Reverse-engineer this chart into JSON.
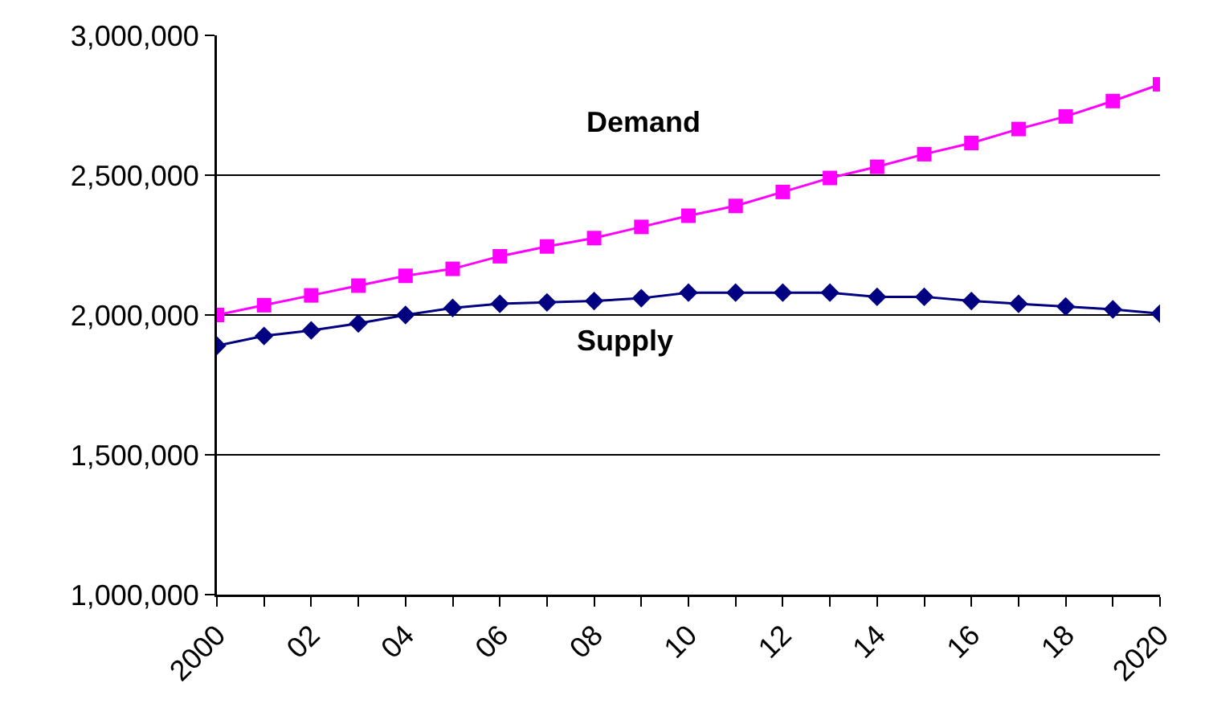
{
  "chart_data": {
    "type": "line",
    "x": [
      2000,
      2001,
      2002,
      2003,
      2004,
      2005,
      2006,
      2007,
      2008,
      2009,
      2010,
      2011,
      2012,
      2013,
      2014,
      2015,
      2016,
      2017,
      2018,
      2019,
      2020
    ],
    "series": [
      {
        "name": "Demand",
        "color": "#ff00ff",
        "marker": "square",
        "values": [
          2000000,
          2035000,
          2070000,
          2105000,
          2140000,
          2165000,
          2210000,
          2245000,
          2275000,
          2315000,
          2355000,
          2390000,
          2440000,
          2490000,
          2530000,
          2575000,
          2615000,
          2665000,
          2710000,
          2765000,
          2825000
        ]
      },
      {
        "name": "Supply",
        "color": "#000080",
        "marker": "diamond",
        "values": [
          1890000,
          1925000,
          1945000,
          1970000,
          2000000,
          2025000,
          2040000,
          2045000,
          2050000,
          2060000,
          2080000,
          2080000,
          2080000,
          2080000,
          2065000,
          2065000,
          2050000,
          2040000,
          2030000,
          2020000,
          2005000
        ]
      }
    ],
    "xlim": [
      2000,
      2020
    ],
    "xticks": [
      2000,
      {
        "value": 2001,
        "label": null
      },
      {
        "value": 2002,
        "label": "02"
      },
      {
        "value": 2003,
        "label": null
      },
      {
        "value": 2004,
        "label": "04"
      },
      {
        "value": 2005,
        "label": null
      },
      {
        "value": 2006,
        "label": "06"
      },
      {
        "value": 2007,
        "label": null
      },
      {
        "value": 2008,
        "label": "08"
      },
      {
        "value": 2009,
        "label": null
      },
      {
        "value": 2010,
        "label": "10"
      },
      {
        "value": 2011,
        "label": null
      },
      {
        "value": 2012,
        "label": "12"
      },
      {
        "value": 2013,
        "label": null
      },
      {
        "value": 2014,
        "label": "14"
      },
      {
        "value": 2015,
        "label": null
      },
      {
        "value": 2016,
        "label": "16"
      },
      {
        "value": 2017,
        "label": null
      },
      {
        "value": 2018,
        "label": "18"
      },
      {
        "value": 2019,
        "label": null
      },
      2020
    ],
    "ylim": [
      1000000,
      3000000
    ],
    "yticks": [
      {
        "value": 1000000,
        "label": "1,000,000"
      },
      {
        "value": 1500000,
        "label": "1,500,000"
      },
      {
        "value": 2000000,
        "label": "2,000,000"
      },
      {
        "value": 2500000,
        "label": "2,500,000"
      },
      {
        "value": 3000000,
        "label": "3,000,000"
      }
    ],
    "grid": "y",
    "legend": false,
    "line_style": "solid"
  }
}
